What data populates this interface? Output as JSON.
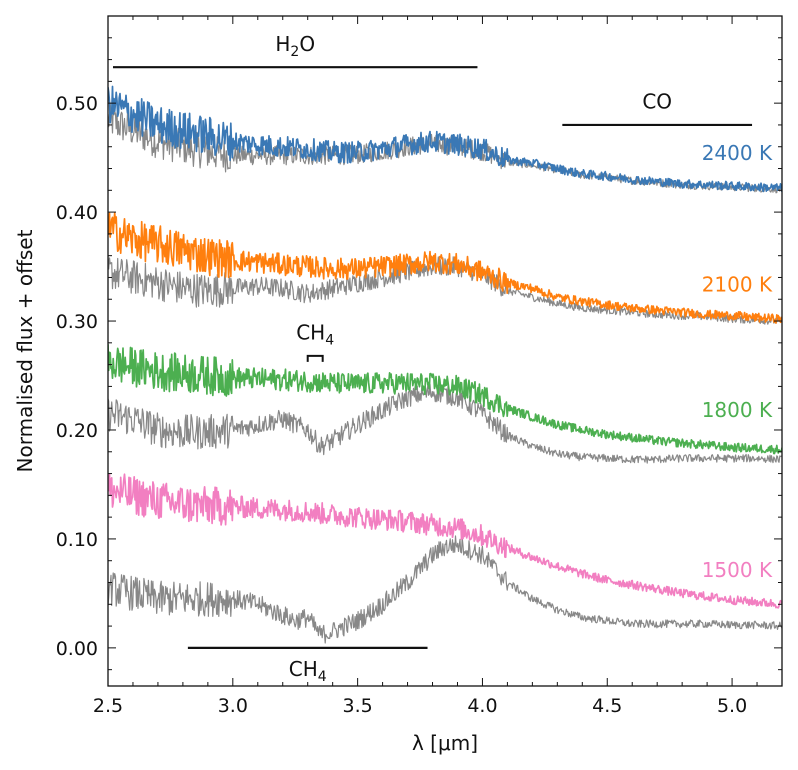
{
  "chart_data": {
    "type": "line",
    "title": "",
    "xlabel": "λ [μm]",
    "ylabel": "Normalised flux + offset",
    "xlim": [
      2.5,
      5.2
    ],
    "ylim": [
      -0.035,
      0.58
    ],
    "x_ticks": [
      2.5,
      3.0,
      3.5,
      4.0,
      4.5,
      5.0
    ],
    "x_tick_labels": [
      "2.5",
      "3.0",
      "3.5",
      "4.0",
      "4.5",
      "5.0"
    ],
    "y_ticks": [
      0.0,
      0.1,
      0.2,
      0.3,
      0.4,
      0.5
    ],
    "y_tick_labels": [
      "0.00",
      "0.10",
      "0.20",
      "0.30",
      "0.40",
      "0.50"
    ],
    "grid": false,
    "legend": "none",
    "temperature_labels": [
      {
        "text": "2400 K",
        "color": "#3a78b5",
        "x": 5.0,
        "y": 0.448
      },
      {
        "text": "2100 K",
        "color": "#ff7f0e",
        "x": 5.0,
        "y": 0.327
      },
      {
        "text": "1800 K",
        "color": "#4caf50",
        "x": 5.0,
        "y": 0.212
      },
      {
        "text": "1500 K",
        "color": "#f27fc1",
        "x": 5.0,
        "y": 0.065
      }
    ],
    "annotations": [
      {
        "label_main": "H",
        "label_sub": "2",
        "label_tail": "O",
        "x_start": 2.52,
        "x_end": 3.98,
        "y": 0.533,
        "label_y": 0.548
      },
      {
        "label_main": "CO",
        "label_sub": "",
        "label_tail": "",
        "x_start": 4.32,
        "x_end": 5.08,
        "y": 0.48,
        "label_y": 0.495
      },
      {
        "label_main": "CH",
        "label_sub": "4",
        "label_tail": "",
        "x_start": 3.3,
        "x_end": 3.36,
        "y": 0.268,
        "label_y": 0.283,
        "bracket": true
      },
      {
        "label_main": "CH",
        "label_sub": "4",
        "label_tail": "",
        "x_start": 2.82,
        "x_end": 3.78,
        "y": 0.0,
        "label_y": -0.028,
        "label_below": true
      }
    ],
    "series": [
      {
        "name": "",
        "color": "#3a78b5",
        "x": [
          2.5,
          2.6,
          2.7,
          2.8,
          2.9,
          3.0,
          3.1,
          3.2,
          3.3,
          3.4,
          3.5,
          3.6,
          3.7,
          3.8,
          3.9,
          4.0,
          4.1,
          4.2,
          4.3,
          4.4,
          4.5,
          4.6,
          4.7,
          4.8,
          4.9,
          5.0,
          5.1,
          5.2
        ],
        "y": [
          0.5,
          0.49,
          0.48,
          0.475,
          0.47,
          0.465,
          0.462,
          0.46,
          0.458,
          0.455,
          0.455,
          0.458,
          0.462,
          0.465,
          0.462,
          0.458,
          0.448,
          0.445,
          0.44,
          0.435,
          0.433,
          0.43,
          0.428,
          0.426,
          0.425,
          0.424,
          0.423,
          0.422
        ]
      },
      {
        "name": "",
        "color": "#888888",
        "x": [
          2.5,
          2.6,
          2.7,
          2.8,
          2.9,
          3.0,
          3.1,
          3.2,
          3.3,
          3.4,
          3.5,
          3.6,
          3.7,
          3.8,
          3.9,
          4.0,
          4.1,
          4.2,
          4.3,
          4.4,
          4.5,
          4.6,
          4.7,
          4.8,
          4.9,
          5.0,
          5.1,
          5.2
        ],
        "y": [
          0.485,
          0.475,
          0.465,
          0.46,
          0.455,
          0.452,
          0.452,
          0.452,
          0.452,
          0.452,
          0.453,
          0.456,
          0.46,
          0.463,
          0.46,
          0.456,
          0.446,
          0.443,
          0.439,
          0.434,
          0.432,
          0.429,
          0.427,
          0.425,
          0.424,
          0.423,
          0.422,
          0.421
        ]
      },
      {
        "name": "",
        "color": "#ff7f0e",
        "x": [
          2.5,
          2.6,
          2.7,
          2.8,
          2.9,
          3.0,
          3.1,
          3.2,
          3.3,
          3.4,
          3.5,
          3.6,
          3.7,
          3.8,
          3.9,
          4.0,
          4.1,
          4.2,
          4.3,
          4.4,
          4.5,
          4.6,
          4.7,
          4.8,
          4.9,
          5.0,
          5.1,
          5.2
        ],
        "y": [
          0.385,
          0.375,
          0.37,
          0.365,
          0.36,
          0.356,
          0.354,
          0.352,
          0.35,
          0.348,
          0.348,
          0.35,
          0.352,
          0.355,
          0.352,
          0.345,
          0.335,
          0.33,
          0.322,
          0.318,
          0.315,
          0.312,
          0.31,
          0.308,
          0.306,
          0.305,
          0.303,
          0.302
        ]
      },
      {
        "name": "",
        "color": "#888888",
        "x": [
          2.5,
          2.6,
          2.7,
          2.8,
          2.9,
          3.0,
          3.1,
          3.2,
          3.3,
          3.4,
          3.5,
          3.6,
          3.7,
          3.8,
          3.9,
          4.0,
          4.1,
          4.2,
          4.3,
          4.4,
          4.5,
          4.6,
          4.7,
          4.8,
          4.9,
          5.0,
          5.1,
          5.2
        ],
        "y": [
          0.345,
          0.34,
          0.335,
          0.33,
          0.328,
          0.33,
          0.332,
          0.33,
          0.325,
          0.33,
          0.335,
          0.34,
          0.345,
          0.35,
          0.35,
          0.343,
          0.328,
          0.322,
          0.316,
          0.312,
          0.31,
          0.308,
          0.306,
          0.305,
          0.304,
          0.302,
          0.301,
          0.3
        ]
      },
      {
        "name": "",
        "color": "#4caf50",
        "x": [
          2.5,
          2.6,
          2.7,
          2.8,
          2.9,
          3.0,
          3.1,
          3.2,
          3.3,
          3.4,
          3.5,
          3.6,
          3.7,
          3.8,
          3.9,
          4.0,
          4.1,
          4.2,
          4.3,
          4.4,
          4.5,
          4.6,
          4.7,
          4.8,
          4.9,
          5.0,
          5.1,
          5.2
        ],
        "y": [
          0.262,
          0.258,
          0.254,
          0.252,
          0.25,
          0.248,
          0.247,
          0.246,
          0.245,
          0.243,
          0.242,
          0.243,
          0.243,
          0.242,
          0.24,
          0.232,
          0.22,
          0.212,
          0.205,
          0.2,
          0.196,
          0.193,
          0.19,
          0.188,
          0.186,
          0.184,
          0.183,
          0.182
        ]
      },
      {
        "name": "",
        "color": "#888888",
        "x": [
          2.5,
          2.6,
          2.7,
          2.8,
          2.9,
          3.0,
          3.1,
          3.2,
          3.3,
          3.35,
          3.4,
          3.5,
          3.6,
          3.7,
          3.8,
          3.9,
          4.0,
          4.1,
          4.2,
          4.3,
          4.4,
          4.5,
          4.6,
          4.7,
          4.8,
          4.9,
          5.0,
          5.1,
          5.2
        ],
        "y": [
          0.215,
          0.21,
          0.2,
          0.198,
          0.198,
          0.2,
          0.205,
          0.21,
          0.2,
          0.185,
          0.19,
          0.205,
          0.218,
          0.23,
          0.235,
          0.23,
          0.215,
          0.195,
          0.185,
          0.178,
          0.175,
          0.174,
          0.173,
          0.173,
          0.174,
          0.174,
          0.174,
          0.174,
          0.173
        ]
      },
      {
        "name": "",
        "color": "#f27fc1",
        "x": [
          2.5,
          2.6,
          2.7,
          2.8,
          2.9,
          3.0,
          3.1,
          3.2,
          3.3,
          3.4,
          3.5,
          3.6,
          3.7,
          3.8,
          3.9,
          4.0,
          4.1,
          4.2,
          4.3,
          4.4,
          4.5,
          4.6,
          4.7,
          4.8,
          4.9,
          5.0,
          5.1,
          5.2
        ],
        "y": [
          0.145,
          0.14,
          0.135,
          0.132,
          0.13,
          0.13,
          0.128,
          0.127,
          0.125,
          0.122,
          0.12,
          0.118,
          0.116,
          0.113,
          0.11,
          0.103,
          0.092,
          0.083,
          0.075,
          0.068,
          0.062,
          0.058,
          0.054,
          0.05,
          0.047,
          0.044,
          0.042,
          0.04
        ]
      },
      {
        "name": "",
        "color": "#888888",
        "x": [
          2.5,
          2.6,
          2.7,
          2.8,
          2.9,
          3.0,
          3.1,
          3.2,
          3.25,
          3.3,
          3.35,
          3.4,
          3.5,
          3.6,
          3.7,
          3.8,
          3.85,
          3.9,
          4.0,
          4.1,
          4.2,
          4.3,
          4.4,
          4.5,
          4.6,
          4.7,
          4.8,
          4.9,
          5.0,
          5.1,
          5.2
        ],
        "y": [
          0.055,
          0.05,
          0.045,
          0.045,
          0.045,
          0.045,
          0.04,
          0.03,
          0.025,
          0.028,
          0.012,
          0.015,
          0.025,
          0.04,
          0.06,
          0.085,
          0.093,
          0.095,
          0.085,
          0.06,
          0.045,
          0.035,
          0.028,
          0.025,
          0.022,
          0.022,
          0.022,
          0.022,
          0.021,
          0.021,
          0.02
        ]
      }
    ]
  }
}
